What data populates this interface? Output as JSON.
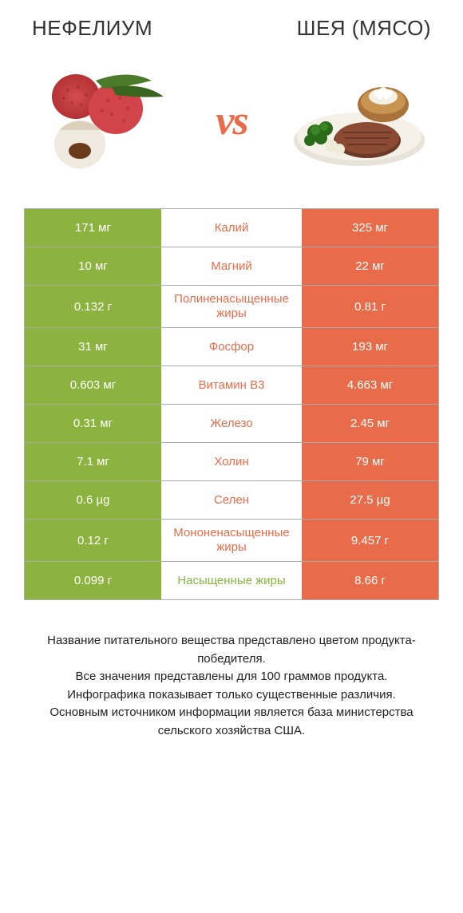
{
  "colors": {
    "green": "#8cb23f",
    "orange": "#e86c4a",
    "white": "#ffffff",
    "text": "#333333"
  },
  "header": {
    "left": "Нефелиум",
    "right": "Шея (мясо)"
  },
  "vs": "vs",
  "table": {
    "rows": [
      {
        "left": "171 мг",
        "mid": "Калий",
        "right": "325 мг",
        "winner": "right"
      },
      {
        "left": "10 мг",
        "mid": "Магний",
        "right": "22 мг",
        "winner": "right"
      },
      {
        "left": "0.132 г",
        "mid": "Полиненасыщенные жиры",
        "right": "0.81 г",
        "winner": "right"
      },
      {
        "left": "31 мг",
        "mid": "Фосфор",
        "right": "193 мг",
        "winner": "right"
      },
      {
        "left": "0.603 мг",
        "mid": "Витамин B3",
        "right": "4.663 мг",
        "winner": "right"
      },
      {
        "left": "0.31 мг",
        "mid": "Железо",
        "right": "2.45 мг",
        "winner": "right"
      },
      {
        "left": "7.1 мг",
        "mid": "Холин",
        "right": "79 мг",
        "winner": "right"
      },
      {
        "left": "0.6 µg",
        "mid": "Селен",
        "right": "27.5 µg",
        "winner": "right"
      },
      {
        "left": "0.12 г",
        "mid": "Мононенасыщенные жиры",
        "right": "9.457 г",
        "winner": "right"
      },
      {
        "left": "0.099 г",
        "mid": "Насыщенные жиры",
        "right": "8.66 г",
        "winner": "left"
      }
    ]
  },
  "footer": "Название питательного вещества представлено цветом продукта-победителя.\nВсе значения представлены для 100 граммов продукта.\nИнфографика показывает только существенные различия.\nОсновным источником информации является база министерства сельского хозяйства США."
}
